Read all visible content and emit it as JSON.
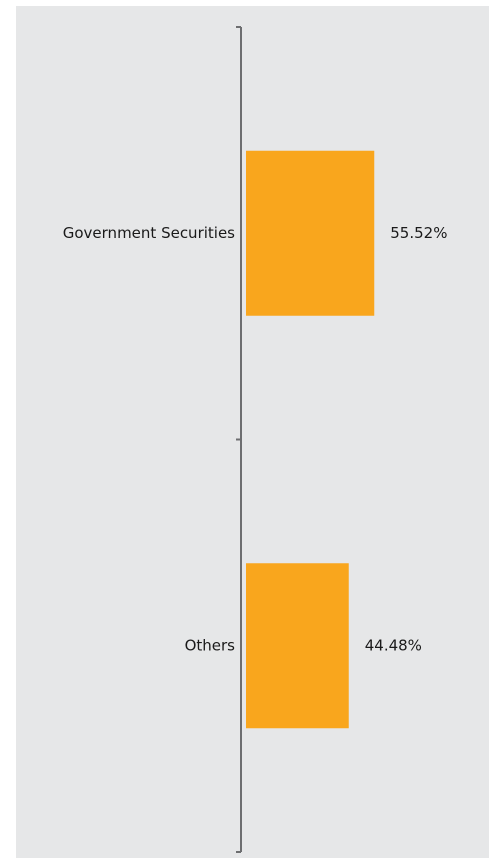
{
  "chart_data": {
    "type": "bar",
    "orientation": "horizontal",
    "categories": [
      "Government Securities",
      "Others"
    ],
    "values": [
      55.52,
      44.48
    ],
    "value_labels": [
      "55.52%",
      "44.48%"
    ],
    "title": "",
    "xlabel": "",
    "ylabel": "",
    "xlim": [
      0,
      100
    ],
    "grid": false,
    "legend": "none",
    "colors": {
      "bar": "#f9a61d",
      "axis": "#6d6e70",
      "background": "#e6e7e8",
      "text": "#1a1a1a"
    }
  }
}
